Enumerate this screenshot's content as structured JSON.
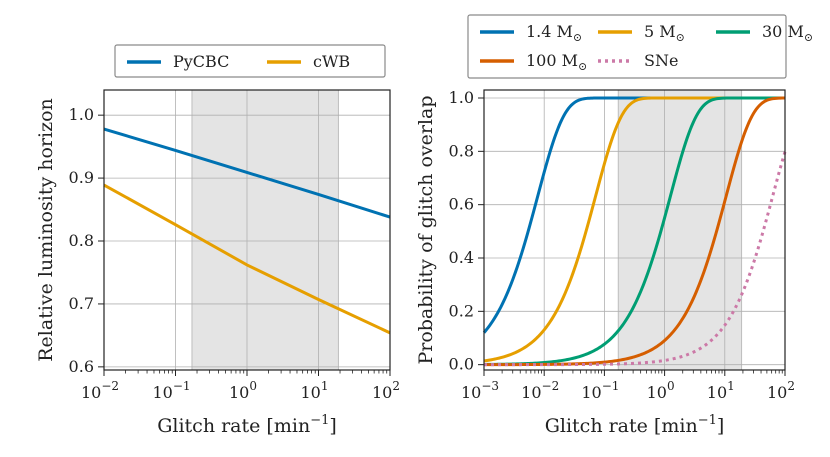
{
  "chart_data": [
    {
      "type": "line",
      "xlabel": "Glitch rate [min",
      "xlabel_sup": "−1",
      "xlabel_close": "]",
      "ylabel": "Relative luminosity horizon",
      "xscale": "log",
      "xlim": [
        0.01,
        100
      ],
      "ylim": [
        0.595,
        1.04
      ],
      "x_ticks": [
        {
          "v": 0.01,
          "label": "10",
          "sup": "−2"
        },
        {
          "v": 0.1,
          "label": "10",
          "sup": "−1"
        },
        {
          "v": 1,
          "label": "10",
          "sup": "0"
        },
        {
          "v": 10,
          "label": "10",
          "sup": "1"
        },
        {
          "v": 100,
          "label": "10",
          "sup": "2"
        }
      ],
      "y_ticks": [
        0.6,
        0.7,
        0.8,
        0.9,
        1.0
      ],
      "y_tick_labels": [
        "0.6",
        "0.7",
        "0.8",
        "0.9",
        "1.0"
      ],
      "grid": true,
      "shaded_region": [
        0.17,
        19
      ],
      "legend_placement": "top, outside",
      "series": [
        {
          "name": "PyCBC",
          "color": "#0072B2",
          "dash": "solid",
          "x": [
            0.01,
            0.1,
            1,
            10,
            100
          ],
          "y": [
            0.978,
            0.944,
            0.909,
            0.874,
            0.838
          ]
        },
        {
          "name": "cWB",
          "color": "#E69F00",
          "dash": "solid",
          "x": [
            0.01,
            0.1,
            1,
            10,
            100
          ],
          "y": [
            0.889,
            0.826,
            0.762,
            0.707,
            0.654
          ]
        }
      ]
    },
    {
      "type": "line",
      "xlabel": "Glitch rate [min",
      "xlabel_sup": "−1",
      "xlabel_close": "]",
      "ylabel": "Probability of glitch overlap",
      "xscale": "log",
      "xlim": [
        0.001,
        100
      ],
      "ylim": [
        -0.02,
        1.03
      ],
      "x_ticks": [
        {
          "v": 0.001,
          "label": "10",
          "sup": "−3"
        },
        {
          "v": 0.01,
          "label": "10",
          "sup": "−2"
        },
        {
          "v": 0.1,
          "label": "10",
          "sup": "−1"
        },
        {
          "v": 1,
          "label": "10",
          "sup": "0"
        },
        {
          "v": 10,
          "label": "10",
          "sup": "1"
        },
        {
          "v": 100,
          "label": "10",
          "sup": "2"
        }
      ],
      "y_ticks": [
        0.0,
        0.2,
        0.4,
        0.6,
        0.8,
        1.0
      ],
      "y_tick_labels": [
        "0.0",
        "0.2",
        "0.4",
        "0.6",
        "0.8",
        "1.0"
      ],
      "grid": true,
      "shaded_region": [
        0.17,
        19
      ],
      "legend_placement": "top, outside, 3 columns",
      "series": [
        {
          "name": "1.4",
          "unit": "M",
          "sub": "⊙",
          "color": "#0072B2",
          "dash": "solid",
          "time_constant_min": 128
        },
        {
          "name": "5",
          "unit": "M",
          "sub": "⊙",
          "color": "#E69F00",
          "dash": "solid",
          "time_constant_min": 14
        },
        {
          "name": "30",
          "unit": "M",
          "sub": "⊙",
          "color": "#009E73",
          "dash": "solid",
          "time_constant_min": 0.8
        },
        {
          "name": "100",
          "unit": "M",
          "sub": "⊙",
          "color": "#D55E00",
          "dash": "solid",
          "time_constant_min": 0.095
        },
        {
          "name": "SNe",
          "unit": "",
          "sub": "",
          "color": "#CC79A7",
          "dash": "dotted",
          "time_constant_min": 0.016
        }
      ]
    }
  ]
}
